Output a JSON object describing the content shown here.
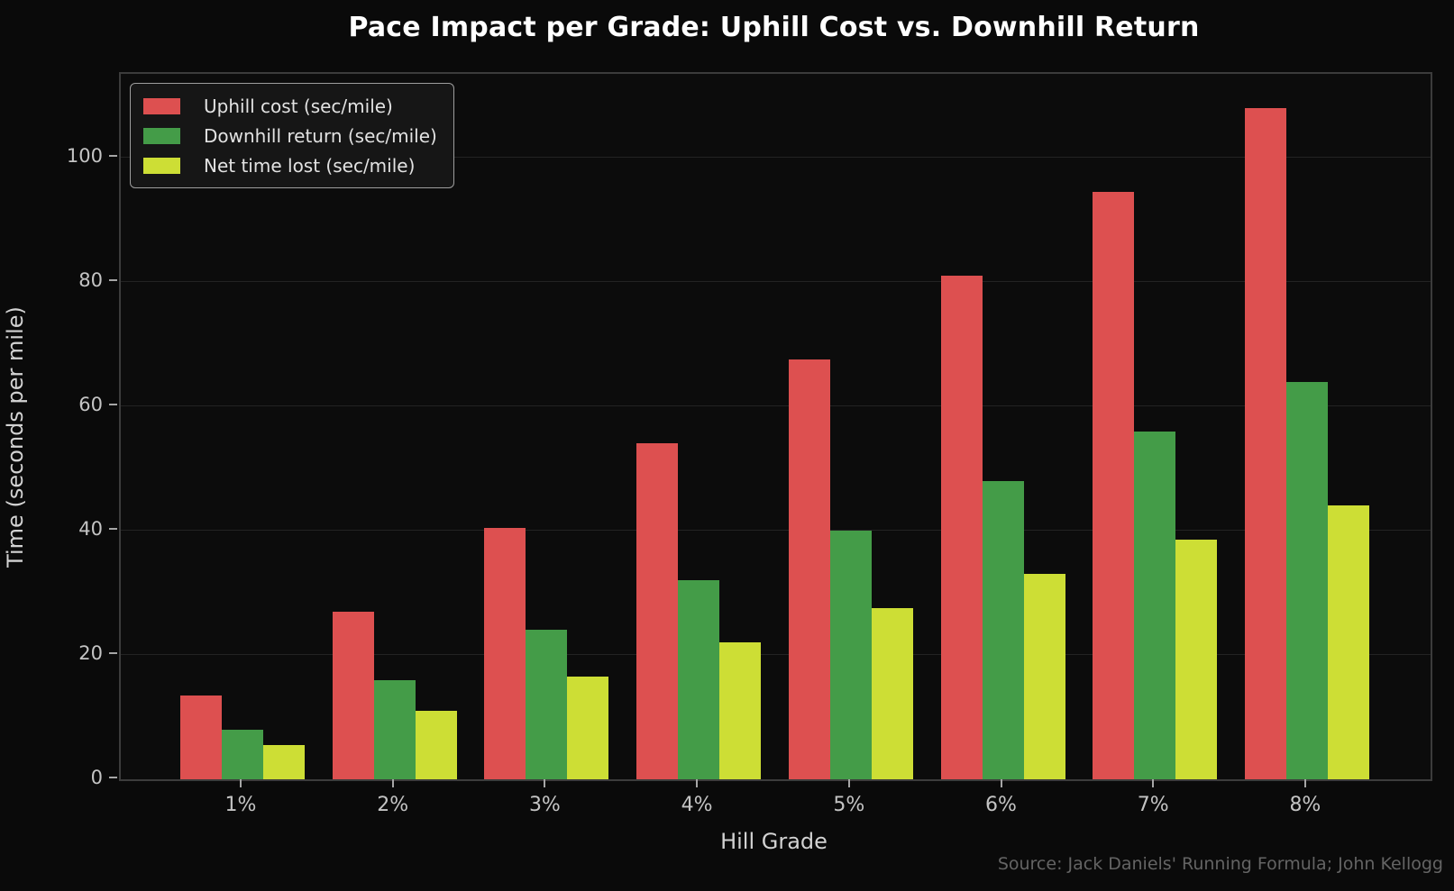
{
  "title": "Pace Impact per Grade: Uphill Cost vs. Downhill Return",
  "source_note": "Source: Jack Daniels' Running Formula; John Kellogg",
  "colors": {
    "background": "#0a0a0a",
    "plot_background": "#0c0c0c",
    "gridline": "#232323",
    "spine": "#3c3c3c",
    "tick": "#a6a6a6",
    "tick_label": "#c4c4c4",
    "axis_label": "#d2d2d2",
    "title_text": "#ffffff",
    "source_text": "#646464",
    "uphill_red": "#dd5050",
    "downhill_green": "#449c48",
    "net_yellow": "#cdde35"
  },
  "chart_data": {
    "type": "bar",
    "title": "Pace Impact per Grade: Uphill Cost vs. Downhill Return",
    "xlabel": "Hill Grade",
    "ylabel": "Time (seconds per mile)",
    "categories": [
      "1%",
      "2%",
      "3%",
      "4%",
      "5%",
      "6%",
      "7%",
      "8%"
    ],
    "series": [
      {
        "name": "Uphill cost (sec/mile)",
        "color": "#dd5050",
        "values": [
          13.5,
          27,
          40.5,
          54,
          67.5,
          81,
          94.5,
          108
        ]
      },
      {
        "name": "Downhill return (sec/mile)",
        "color": "#449c48",
        "values": [
          8,
          16,
          24,
          32,
          40,
          48,
          56,
          64
        ]
      },
      {
        "name": "Net time lost (sec/mile)",
        "color": "#cdde35",
        "values": [
          5.5,
          11,
          16.5,
          22,
          27.5,
          33,
          38.5,
          44
        ]
      }
    ],
    "ylim": [
      0,
      113.5
    ],
    "yticks": [
      0,
      20,
      40,
      60,
      80,
      100
    ],
    "grid": true,
    "legend_position": "upper left"
  }
}
